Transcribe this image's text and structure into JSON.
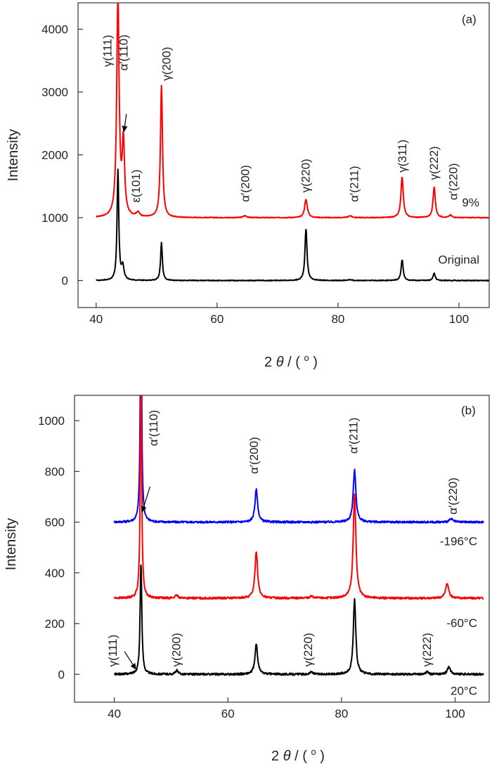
{
  "chart_data": [
    {
      "type": "line",
      "panel_label": "(a)",
      "xlabel": "2θ / (°)",
      "xlabel_parts": {
        "base": "2",
        "theta": "θ",
        "unit": " / (",
        "deg": "o",
        "close": ")"
      },
      "ylabel": "Intensity",
      "xlim": [
        37,
        105
      ],
      "ylim": [
        -430,
        4420
      ],
      "xticks": [
        40,
        60,
        80,
        100
      ],
      "yticks": [
        0,
        1000,
        2000,
        3000,
        4000
      ],
      "grid": false,
      "series": [
        {
          "name": "9%",
          "color": "#ff0000",
          "offset": 1000,
          "noise": 6,
          "peaks": [
            [
              43.6,
              3500,
              0.35
            ],
            [
              44.5,
              1150,
              0.35
            ],
            [
              46.9,
              70,
              0.5
            ],
            [
              50.8,
              2100,
              0.3
            ],
            [
              64.6,
              30,
              0.5
            ],
            [
              74.7,
              290,
              0.4
            ],
            [
              82.0,
              30,
              0.5
            ],
            [
              90.6,
              640,
              0.35
            ],
            [
              95.9,
              490,
              0.33
            ],
            [
              98.6,
              40,
              0.4
            ]
          ]
        },
        {
          "name": "Original",
          "color": "#000000",
          "offset": 0,
          "noise": 6,
          "peaks": [
            [
              43.6,
              1750,
              0.25
            ],
            [
              44.4,
              220,
              0.35
            ],
            [
              50.8,
              600,
              0.26
            ],
            [
              74.7,
              820,
              0.3
            ],
            [
              82.0,
              15,
              0.5
            ],
            [
              90.6,
              330,
              0.3
            ],
            [
              95.9,
              120,
              0.3
            ]
          ]
        }
      ],
      "annotations": [
        {
          "text": "γ(111)",
          "x": 42.5,
          "y": 3400
        },
        {
          "text": "α′(110)",
          "x": 45.2,
          "y": 3340
        },
        {
          "text": "γ(200)",
          "x": 52.3,
          "y": 3180
        },
        {
          "text": "ε(101)",
          "x": 47.2,
          "y": 1240
        },
        {
          "text": "α′(200)",
          "x": 65.3,
          "y": 1250
        },
        {
          "text": "γ(220)",
          "x": 75.3,
          "y": 1400
        },
        {
          "text": "α′(211)",
          "x": 83.3,
          "y": 1250
        },
        {
          "text": "γ(311)",
          "x": 91.3,
          "y": 1720
        },
        {
          "text": "γ(222)",
          "x": 96.5,
          "y": 1600
        },
        {
          "text": "α′(220)",
          "x": 99.7,
          "y": 1280
        }
      ],
      "arrow": {
        "from": [
          45.0,
          2650
        ],
        "to": [
          44.6,
          2370
        ]
      }
    },
    {
      "type": "line",
      "panel_label": "(b)",
      "xlabel": "2θ / (°)",
      "ylabel": "Intensity",
      "xlim": [
        33,
        106
      ],
      "ylim": [
        -110,
        1100
      ],
      "xticks": [
        40,
        60,
        80,
        100
      ],
      "yticks": [
        0,
        200,
        400,
        600,
        800,
        1000
      ],
      "grid": false,
      "series": [
        {
          "name": "-196°C",
          "color": "#0000ff",
          "offset": 600,
          "noise": 4,
          "peaks": [
            [
              44.7,
              900,
              0.22
            ],
            [
              65.0,
              128,
              0.42
            ],
            [
              82.3,
              205,
              0.42
            ],
            [
              99.3,
              12,
              0.6
            ]
          ]
        },
        {
          "name": "-60°C",
          "color": "#ff0000",
          "offset": 300,
          "noise": 4,
          "peaks": [
            [
              44.7,
              900,
              0.22
            ],
            [
              51.0,
              10,
              0.5
            ],
            [
              65.0,
              185,
              0.42
            ],
            [
              74.7,
              8,
              0.5
            ],
            [
              82.3,
              410,
              0.42
            ],
            [
              98.6,
              58,
              0.5
            ]
          ]
        },
        {
          "name": "20°C",
          "color": "#000000",
          "offset": 0,
          "noise": 4,
          "peaks": [
            [
              44.7,
              440,
              0.26
            ],
            [
              51.0,
              15,
              0.4
            ],
            [
              65.0,
              118,
              0.42
            ],
            [
              74.7,
              10,
              0.4
            ],
            [
              82.3,
              300,
              0.38
            ],
            [
              95.1,
              12,
              0.3
            ],
            [
              98.9,
              28,
              0.5
            ]
          ]
        }
      ],
      "annotations": [
        {
          "text": "α′(110)",
          "x": 47.6,
          "y": 900
        },
        {
          "text": "α′(200)",
          "x": 65.3,
          "y": 790
        },
        {
          "text": "α′(211)",
          "x": 82.8,
          "y": 870
        },
        {
          "text": "α′(220)",
          "x": 100.3,
          "y": 630
        },
        {
          "text": "γ(111)",
          "x": 40.4,
          "y": 30
        },
        {
          "text": "γ(200)",
          "x": 51.6,
          "y": 30
        },
        {
          "text": "γ(220)",
          "x": 74.8,
          "y": 30
        },
        {
          "text": "γ(222)",
          "x": 95.7,
          "y": 30
        }
      ],
      "arrow": {
        "from": [
          46.3,
          740
        ],
        "to": [
          44.9,
          640
        ]
      },
      "arrow2": {
        "from": [
          41.8,
          90
        ],
        "to": [
          43.8,
          20
        ]
      }
    }
  ]
}
